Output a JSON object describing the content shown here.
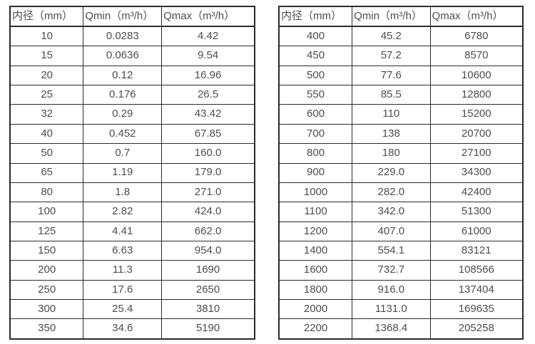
{
  "colors": {
    "background": "#ffffff",
    "border": "#2b2b2b",
    "text": "#4d4d4d"
  },
  "chart_data": [
    {
      "type": "table",
      "title": "",
      "columns": [
        "内径（mm）",
        "Qmin（m³/h）",
        "Qmax（m³/h）"
      ],
      "rows": [
        [
          "10",
          "0.0283",
          "4.42"
        ],
        [
          "15",
          "0.0636",
          "9.54"
        ],
        [
          "20",
          "0.12",
          "16.96"
        ],
        [
          "25",
          "0.176",
          "26.5"
        ],
        [
          "32",
          "0.29",
          "43.42"
        ],
        [
          "40",
          "0.452",
          "67.85"
        ],
        [
          "50",
          "0.7",
          "160.0"
        ],
        [
          "65",
          "1.19",
          "179.0"
        ],
        [
          "80",
          "1.8",
          "271.0"
        ],
        [
          "100",
          "2.82",
          "424.0"
        ],
        [
          "125",
          "4.41",
          "662.0"
        ],
        [
          "150",
          "6.63",
          "954.0"
        ],
        [
          "200",
          "11.3",
          "1690"
        ],
        [
          "250",
          "17.6",
          "2650"
        ],
        [
          "300",
          "25.4",
          "3810"
        ],
        [
          "350",
          "34.6",
          "5190"
        ]
      ]
    },
    {
      "type": "table",
      "title": "",
      "columns": [
        "内径（mm）",
        "Qmin（m³/h）",
        "Qmax（m³/h）"
      ],
      "rows": [
        [
          "400",
          "45.2",
          "6780"
        ],
        [
          "450",
          "57.2",
          "8570"
        ],
        [
          "500",
          "77.6",
          "10600"
        ],
        [
          "550",
          "85.5",
          "12800"
        ],
        [
          "600",
          "110",
          "15200"
        ],
        [
          "700",
          "138",
          "20700"
        ],
        [
          "800",
          "180",
          "27100"
        ],
        [
          "900",
          "229.0",
          "34300"
        ],
        [
          "1000",
          "282.0",
          "42400"
        ],
        [
          "1100",
          "342.0",
          "51300"
        ],
        [
          "1200",
          "407.0",
          "61000"
        ],
        [
          "1400",
          "554.1",
          "83121"
        ],
        [
          "1600",
          "732.7",
          "108566"
        ],
        [
          "1800",
          "916.0",
          "137404"
        ],
        [
          "2000",
          "1131.0",
          "169635"
        ],
        [
          "2200",
          "1368.4",
          "205258"
        ]
      ]
    }
  ]
}
